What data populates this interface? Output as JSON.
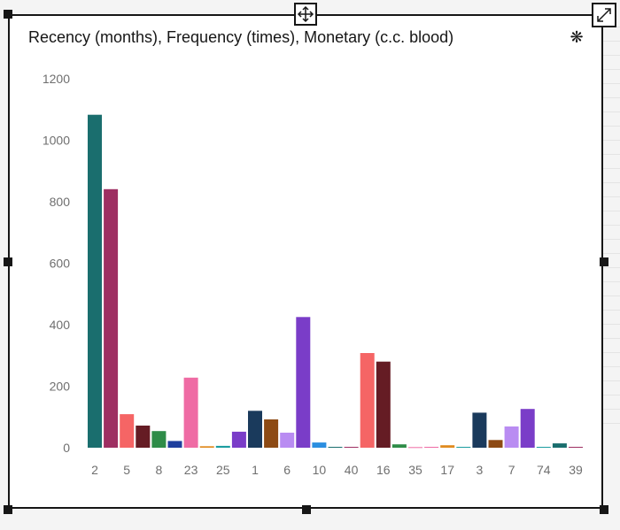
{
  "card": {
    "settings_icon": "settings-gear-icon",
    "move_icon": "move-icon",
    "expand_icon": "expand-icon"
  },
  "chart_data": {
    "type": "bar",
    "title": "Recency (months), Frequency (times), Monetary (c.c. blood)",
    "xlabel": "",
    "ylabel": "",
    "ylim": [
      0,
      1200
    ],
    "yticks": [
      0,
      200,
      400,
      600,
      800,
      1000,
      1200
    ],
    "grid": false,
    "legend": "none",
    "tick_labels": [
      "2",
      "5",
      "8",
      "23",
      "25",
      "1",
      "6",
      "10",
      "40",
      "16",
      "35",
      "17",
      "3",
      "7",
      "74",
      "39"
    ],
    "values": [
      1083,
      841,
      109,
      72,
      54,
      22,
      228,
      5,
      6,
      52,
      120,
      92,
      49,
      425,
      17,
      3,
      3,
      308,
      280,
      11,
      2,
      3,
      8,
      3,
      114,
      25,
      69,
      126,
      3,
      14,
      3
    ],
    "colors": [
      "#1a6e6e",
      "#9e2f62",
      "#f56565",
      "#651c24",
      "#2e8c48",
      "#1f3f9e",
      "#ef6ba4",
      "#e08b20",
      "#1b9da0",
      "#7a3dc8",
      "#1a3a5c",
      "#8d4a14",
      "#b98cf2",
      "#7a3dc8",
      "#2b8ee0",
      "#1a6e6e",
      "#9e2f62",
      "#f56565",
      "#651c24",
      "#2e8c48",
      "#ef6ba4",
      "#ef6ba4",
      "#e08b20",
      "#1b9da0",
      "#1a3a5c",
      "#8d4a14",
      "#b98cf2",
      "#7a3dc8",
      "#1b9da0",
      "#1a6e6e",
      "#9e2f62"
    ]
  }
}
